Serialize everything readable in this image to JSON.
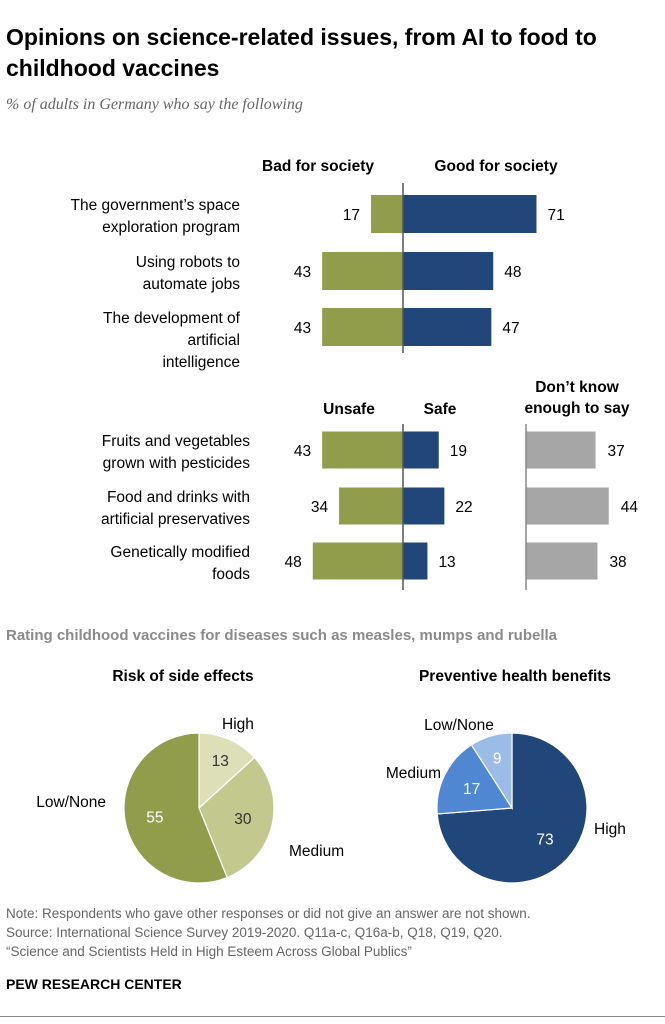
{
  "header": {
    "title": "Opinions on science-related issues, from AI to food to childhood vaccines",
    "subtitle": "% of adults in Germany who say the following"
  },
  "colors": {
    "olive": "#919d4b",
    "navy": "#214679",
    "gray": "#a6a6a6",
    "light_olive": "#dcdfb8",
    "mid_olive": "#c3c98e",
    "mid_blue": "#4f87d2",
    "light_blue": "#9cbce8"
  },
  "chart_data": [
    {
      "type": "bar",
      "orientation": "horizontal-diverging",
      "categories": [
        "The government’s space exploration program",
        "Using robots to automate jobs",
        "The development of artificial intelligence"
      ],
      "series": [
        {
          "name": "Bad for society",
          "values": [
            17,
            43,
            43
          ]
        },
        {
          "name": "Good for society",
          "values": [
            71,
            48,
            47
          ]
        }
      ]
    },
    {
      "type": "bar",
      "orientation": "horizontal-diverging",
      "categories": [
        "Fruits and vegetables grown with pesticides",
        "Food and drinks with artificial preservatives",
        "Genetically modified foods"
      ],
      "series": [
        {
          "name": "Unsafe",
          "values": [
            43,
            34,
            48
          ]
        },
        {
          "name": "Safe",
          "values": [
            19,
            22,
            13
          ]
        },
        {
          "name": "Don’t know enough to say",
          "values": [
            37,
            44,
            38
          ]
        }
      ]
    },
    {
      "type": "pie",
      "title": "Risk of side effects",
      "slices": [
        {
          "label": "High",
          "value": 13
        },
        {
          "label": "Medium",
          "value": 30
        },
        {
          "label": "Low/None",
          "value": 55
        }
      ]
    },
    {
      "type": "pie",
      "title": "Preventive health benefits",
      "slices": [
        {
          "label": "High",
          "value": 73
        },
        {
          "label": "Medium",
          "value": 17
        },
        {
          "label": "Low/None",
          "value": 9
        }
      ]
    }
  ],
  "vaccines": {
    "section_title": "Rating childhood vaccines for diseases such as measles, mumps and rubella"
  },
  "notes": {
    "note": "Note: Respondents who gave other responses or did not give an answer are not shown.",
    "source": "Source: International Science Survey 2019-2020. Q11a-c, Q16a-b, Q18, Q19, Q20.",
    "report": "“Science and Scientists Held in High Esteem Across Global Publics”"
  },
  "brand": "PEW RESEARCH CENTER"
}
